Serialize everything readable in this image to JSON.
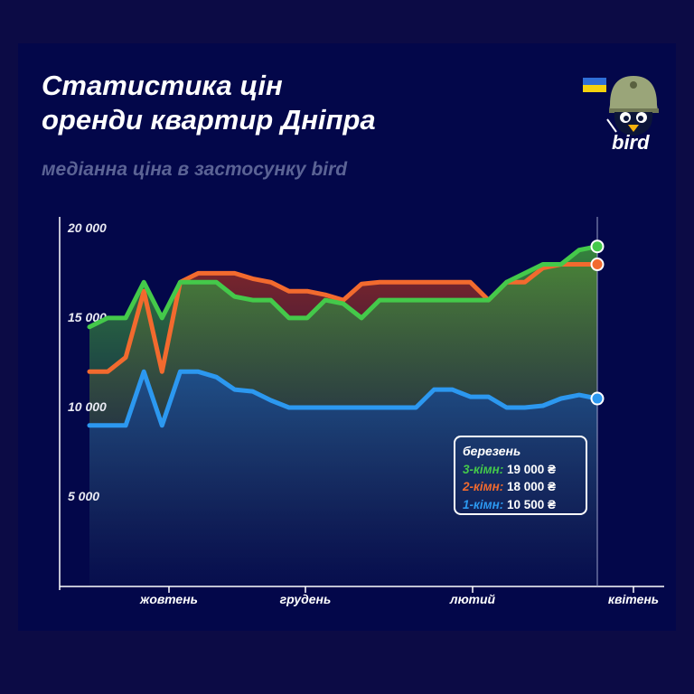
{
  "header": {
    "title_line1": "Статистика цін",
    "title_line2": "оренди квартир Дніпра",
    "subtitle": "медіанна ціна в застосунку bird",
    "logo_text": "bird"
  },
  "legend": {
    "header": "березень",
    "items": [
      {
        "label": "3-кімн:",
        "value": "19 000 ₴"
      },
      {
        "label": "2-кімн:",
        "value": "18 000 ₴"
      },
      {
        "label": "1-кімн:",
        "value": "10 500 ₴"
      }
    ]
  },
  "colors": {
    "background": "#03074a",
    "three_room": "#44c94a",
    "two_room": "#f26a2e",
    "one_room": "#2c98f0",
    "axis": "#ffffff",
    "ytick": "#e8e9f2"
  },
  "chart_data": {
    "type": "line",
    "title": "Статистика цін оренди квартир Дніпра",
    "subtitle": "медіанна ціна в застосунку bird",
    "x_tick_labels": [
      "жовтень",
      "грудень",
      "лютий",
      "квітень"
    ],
    "y_tick_labels": [
      "5 000",
      "10 000",
      "15 000",
      "20 000"
    ],
    "y_ticks": [
      5000,
      10000,
      15000,
      20000
    ],
    "ylim": [
      0,
      20500
    ],
    "grid": false,
    "legend_position": "bottom-right",
    "series": [
      {
        "name": "3-кімн",
        "color": "#44c94a",
        "values": [
          14500,
          15000,
          15000,
          17000,
          15000,
          17000,
          17000,
          17000,
          16200,
          16000,
          16000,
          15000,
          15000,
          16000,
          15800,
          15000,
          16000,
          16000,
          16000,
          16000,
          16000,
          16000,
          16000,
          17000,
          17500,
          18000,
          18000,
          18800,
          19000
        ]
      },
      {
        "name": "2-кімн",
        "color": "#f26a2e",
        "values": [
          12000,
          12000,
          12800,
          16500,
          12000,
          17000,
          17500,
          17500,
          17500,
          17200,
          17000,
          16500,
          16500,
          16300,
          16000,
          16900,
          17000,
          17000,
          17000,
          17000,
          17000,
          17000,
          16000,
          17000,
          17000,
          17800,
          18000,
          18000,
          18000
        ]
      },
      {
        "name": "1-кімн",
        "color": "#2c98f0",
        "values": [
          9000,
          9000,
          9000,
          12000,
          9000,
          12000,
          12000,
          11700,
          11000,
          10900,
          10400,
          10000,
          10000,
          10000,
          10000,
          10000,
          10000,
          10000,
          10000,
          11000,
          11000,
          10600,
          10600,
          10000,
          10000,
          10100,
          10500,
          10700,
          10500
        ]
      }
    ]
  }
}
